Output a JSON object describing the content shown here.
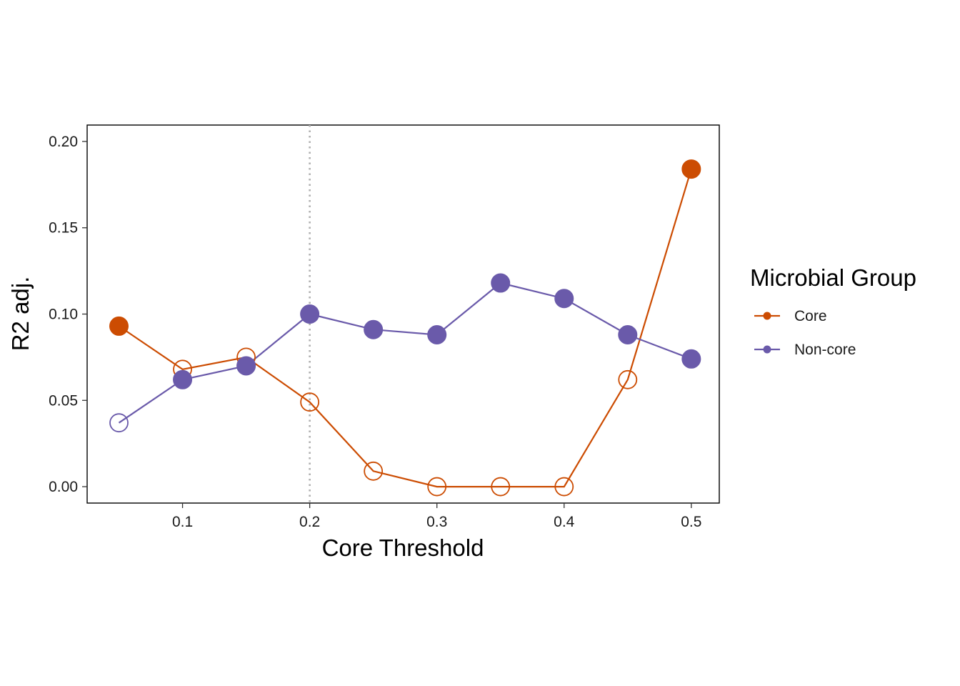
{
  "chart_data": {
    "type": "line",
    "xlabel": "Core Threshold",
    "ylabel": "R2 adj.",
    "xlim": [
      0.025,
      0.522
    ],
    "ylim": [
      -0.0095,
      0.2095
    ],
    "x_ticks": [
      0.1,
      0.2,
      0.3,
      0.4,
      0.5
    ],
    "x_tick_labels": [
      "0.1",
      "0.2",
      "0.3",
      "0.4",
      "0.5"
    ],
    "y_ticks": [
      0.0,
      0.05,
      0.1,
      0.15,
      0.2
    ],
    "y_tick_labels": [
      "0.00",
      "0.05",
      "0.10",
      "0.15",
      "0.20"
    ],
    "reference_line": {
      "x": 0.2,
      "style": "dotted",
      "color": "#b0b0b0"
    },
    "grid": false,
    "legend": {
      "title": "Microbial Group",
      "placement": "right"
    },
    "marker_fill_note": "filled markers = significant, hollow markers = not significant",
    "x": [
      0.05,
      0.1,
      0.15,
      0.2,
      0.25,
      0.3,
      0.35,
      0.4,
      0.45,
      0.5
    ],
    "series": [
      {
        "name": "Core",
        "color": "#cc4c02",
        "values": [
          0.093,
          0.068,
          0.075,
          0.049,
          0.009,
          0.0,
          0.0,
          0.0,
          0.062,
          0.184
        ],
        "filled": [
          true,
          false,
          false,
          false,
          false,
          false,
          false,
          false,
          false,
          true
        ]
      },
      {
        "name": "Non-core",
        "color": "#6a5aaa",
        "values": [
          0.037,
          0.062,
          0.07,
          0.1,
          0.091,
          0.088,
          0.118,
          0.109,
          0.088,
          0.074
        ],
        "filled": [
          false,
          true,
          true,
          true,
          true,
          true,
          true,
          true,
          true,
          true
        ]
      }
    ]
  }
}
